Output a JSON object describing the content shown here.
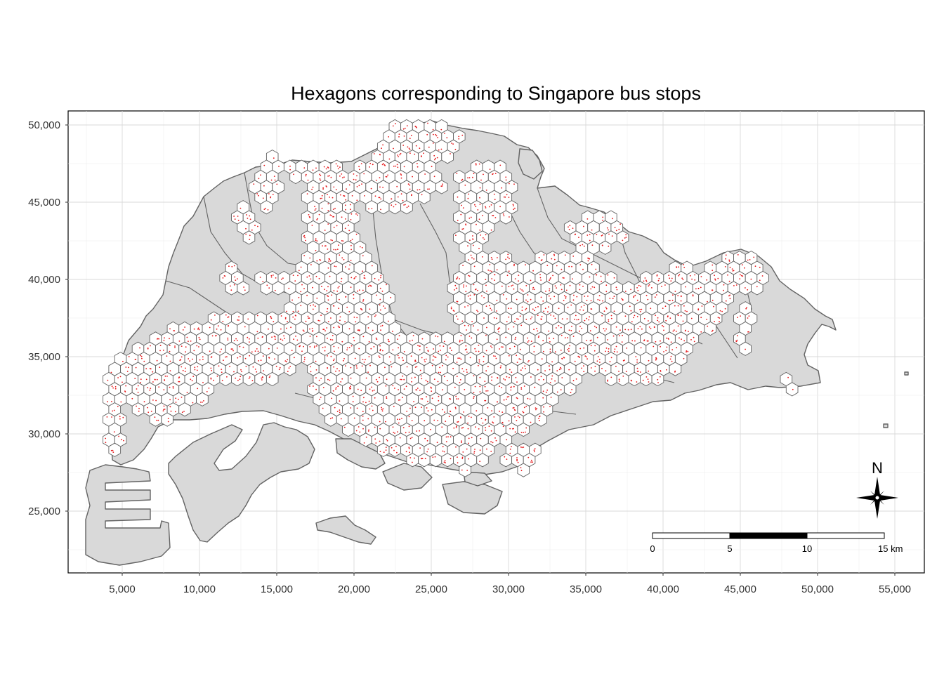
{
  "title": "Hexagons corresponding to Singapore bus stops",
  "x_ticks": [
    "5,000",
    "10,000",
    "15,000",
    "20,000",
    "25,000",
    "30,000",
    "35,000",
    "40,000",
    "45,000",
    "50,000",
    "55,000"
  ],
  "y_ticks": [
    "50,000",
    "45,000",
    "40,000",
    "35,000",
    "30,000",
    "25,000"
  ],
  "scale_bar": {
    "labels": [
      "0",
      "5",
      "10",
      "15 km"
    ]
  },
  "north_arrow": {
    "label": "N"
  },
  "colors": {
    "land": "#d9d9d9",
    "boundary": "#636363",
    "hexagon_fill": "#ffffff",
    "hexagon_stroke": "#636363",
    "bus_stop": "#e41a1c",
    "grid": "#d9d9d9"
  }
}
